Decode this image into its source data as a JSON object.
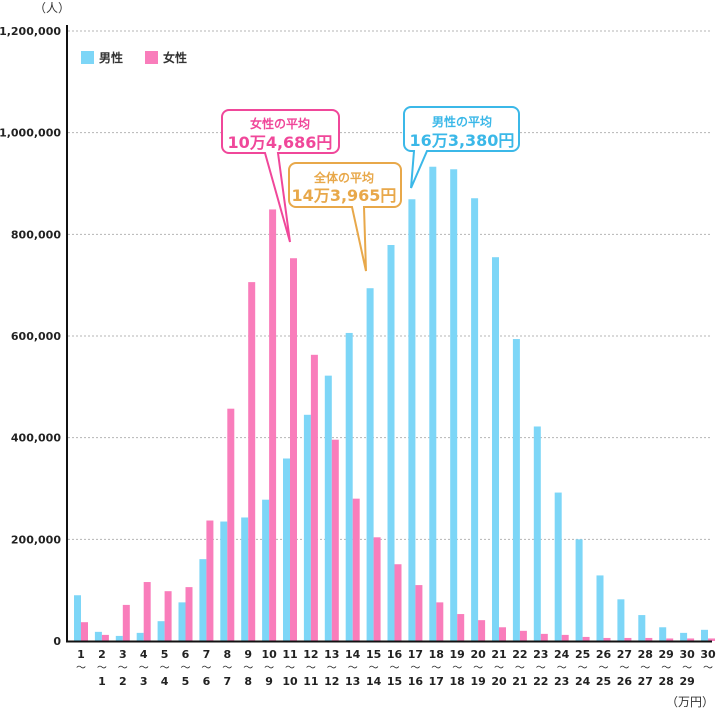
{
  "chart_data": {
    "type": "bar",
    "title": "",
    "ylabel": "（人）",
    "xlabel": "（万円）",
    "ylim": [
      0,
      1200000
    ],
    "yticks": [
      "0",
      "200,000",
      "400,000",
      "600,000",
      "800,000",
      "1,000,000",
      "1,200,000"
    ],
    "ytick_values": [
      0,
      200000,
      400000,
      600000,
      800000,
      1000000,
      1200000
    ],
    "grid": true,
    "legend_placement": "top-left",
    "categories": [
      {
        "top": "1",
        "bottom": ""
      },
      {
        "top": "2",
        "bottom": "1"
      },
      {
        "top": "3",
        "bottom": "2"
      },
      {
        "top": "4",
        "bottom": "3"
      },
      {
        "top": "5",
        "bottom": "4"
      },
      {
        "top": "6",
        "bottom": "5"
      },
      {
        "top": "7",
        "bottom": "6"
      },
      {
        "top": "8",
        "bottom": "7"
      },
      {
        "top": "9",
        "bottom": "8"
      },
      {
        "top": "10",
        "bottom": "9"
      },
      {
        "top": "11",
        "bottom": "10"
      },
      {
        "top": "12",
        "bottom": "11"
      },
      {
        "top": "13",
        "bottom": "12"
      },
      {
        "top": "14",
        "bottom": "13"
      },
      {
        "top": "15",
        "bottom": "14"
      },
      {
        "top": "16",
        "bottom": "15"
      },
      {
        "top": "17",
        "bottom": "16"
      },
      {
        "top": "18",
        "bottom": "17"
      },
      {
        "top": "19",
        "bottom": "18"
      },
      {
        "top": "20",
        "bottom": "19"
      },
      {
        "top": "21",
        "bottom": "20"
      },
      {
        "top": "22",
        "bottom": "21"
      },
      {
        "top": "23",
        "bottom": "22"
      },
      {
        "top": "24",
        "bottom": "23"
      },
      {
        "top": "25",
        "bottom": "24"
      },
      {
        "top": "26",
        "bottom": "25"
      },
      {
        "top": "27",
        "bottom": "26"
      },
      {
        "top": "28",
        "bottom": "27"
      },
      {
        "top": "29",
        "bottom": "28"
      },
      {
        "top": "30",
        "bottom": "29"
      },
      {
        "top": "30",
        "bottom": ""
      }
    ],
    "range_mark": "〜",
    "series": [
      {
        "name": "男性",
        "color": "#7dd6f7",
        "values": [
          90000,
          18000,
          10000,
          16000,
          39000,
          76000,
          161000,
          235000,
          243000,
          278000,
          359000,
          445000,
          522000,
          606000,
          694000,
          779000,
          869000,
          933000,
          928000,
          871000,
          755000,
          594000,
          422000,
          292000,
          200000,
          129000,
          82000,
          51000,
          27000,
          16000,
          22000
        ]
      },
      {
        "name": "女性",
        "color": "#f97dbb",
        "values": [
          37000,
          12000,
          71000,
          116000,
          98000,
          106000,
          237000,
          457000,
          706000,
          849000,
          753000,
          563000,
          396000,
          280000,
          204000,
          151000,
          110000,
          76000,
          53000,
          41000,
          27000,
          20000,
          14000,
          12000,
          8000,
          6000,
          6000,
          6000,
          5000,
          5000,
          5000
        ]
      }
    ],
    "annotations": [
      {
        "label": "女性の平均",
        "value": "10万4,686円",
        "color": "#f0479a"
      },
      {
        "label": "全体の平均",
        "value": "14万3,965円",
        "color": "#e8a84a"
      },
      {
        "label": "男性の平均",
        "value": "16万3,380円",
        "color": "#3bb8e8"
      }
    ]
  }
}
